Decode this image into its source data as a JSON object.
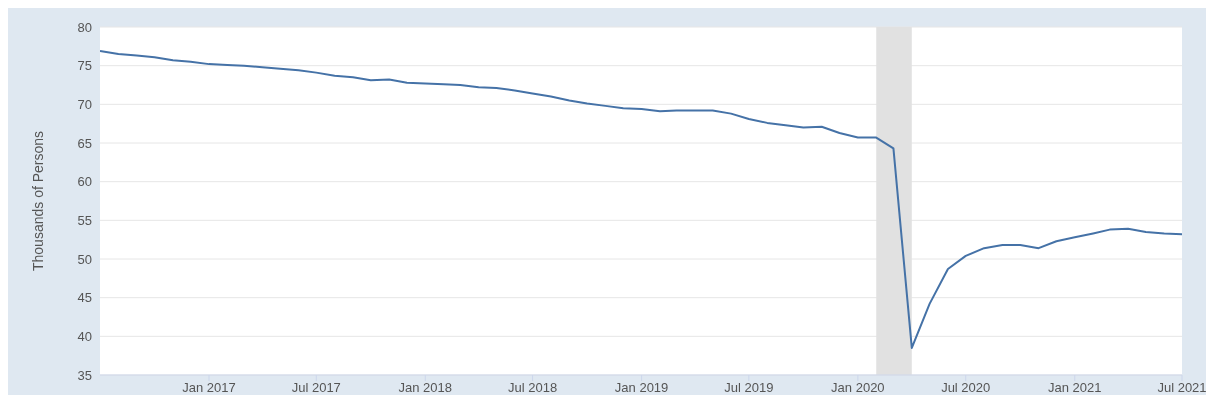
{
  "chart_data": {
    "type": "line",
    "ylabel": "Thousands of Persons",
    "x": [
      "2016-07",
      "2016-08",
      "2016-09",
      "2016-10",
      "2016-11",
      "2016-12",
      "2017-01",
      "2017-02",
      "2017-03",
      "2017-04",
      "2017-05",
      "2017-06",
      "2017-07",
      "2017-08",
      "2017-09",
      "2017-10",
      "2017-11",
      "2017-12",
      "2018-01",
      "2018-02",
      "2018-03",
      "2018-04",
      "2018-05",
      "2018-06",
      "2018-07",
      "2018-08",
      "2018-09",
      "2018-10",
      "2018-11",
      "2018-12",
      "2019-01",
      "2019-02",
      "2019-03",
      "2019-04",
      "2019-05",
      "2019-06",
      "2019-07",
      "2019-08",
      "2019-09",
      "2019-10",
      "2019-11",
      "2019-12",
      "2020-01",
      "2020-02",
      "2020-03",
      "2020-04",
      "2020-05",
      "2020-06",
      "2020-07",
      "2020-08",
      "2020-09",
      "2020-10",
      "2020-11",
      "2020-12",
      "2021-01",
      "2021-02",
      "2021-03",
      "2021-04",
      "2021-05",
      "2021-06",
      "2021-07"
    ],
    "series": [
      {
        "color": "#4572a7",
        "values": [
          76.9,
          76.5,
          76.3,
          76.1,
          75.7,
          75.5,
          75.2,
          75.1,
          75.0,
          74.8,
          74.6,
          74.4,
          74.1,
          73.7,
          73.5,
          73.1,
          73.2,
          72.8,
          72.7,
          72.6,
          72.5,
          72.2,
          72.1,
          71.8,
          71.4,
          71.0,
          70.5,
          70.1,
          69.8,
          69.5,
          69.4,
          69.1,
          69.2,
          69.2,
          69.2,
          68.8,
          68.1,
          67.6,
          67.3,
          67.0,
          67.1,
          66.3,
          65.7,
          65.7,
          64.3,
          38.5,
          44.2,
          48.7,
          50.4,
          51.4,
          51.8,
          51.8,
          51.4,
          52.3,
          52.8,
          53.3,
          53.8,
          53.9,
          53.5,
          53.3,
          53.2
        ]
      }
    ],
    "xlim": [
      "2016-07",
      "2021-07"
    ],
    "xticks": [
      {
        "value": "2017-01",
        "label": "Jan 2017"
      },
      {
        "value": "2017-07",
        "label": "Jul 2017"
      },
      {
        "value": "2018-01",
        "label": "Jan 2018"
      },
      {
        "value": "2018-07",
        "label": "Jul 2018"
      },
      {
        "value": "2019-01",
        "label": "Jan 2019"
      },
      {
        "value": "2019-07",
        "label": "Jul 2019"
      },
      {
        "value": "2020-01",
        "label": "Jan 2020"
      },
      {
        "value": "2020-07",
        "label": "Jul 2020"
      },
      {
        "value": "2021-01",
        "label": "Jan 2021"
      },
      {
        "value": "2021-07",
        "label": "Jul 2021"
      }
    ],
    "ylim": [
      35,
      80
    ],
    "yticks": [
      35,
      40,
      45,
      50,
      55,
      60,
      65,
      70,
      75,
      80
    ],
    "bands": [
      {
        "axis": "x",
        "from": "2020-02",
        "to": "2020-04",
        "color": "#e1e1e1"
      }
    ],
    "grid": "y",
    "marker": "none",
    "line_style": "solid"
  }
}
